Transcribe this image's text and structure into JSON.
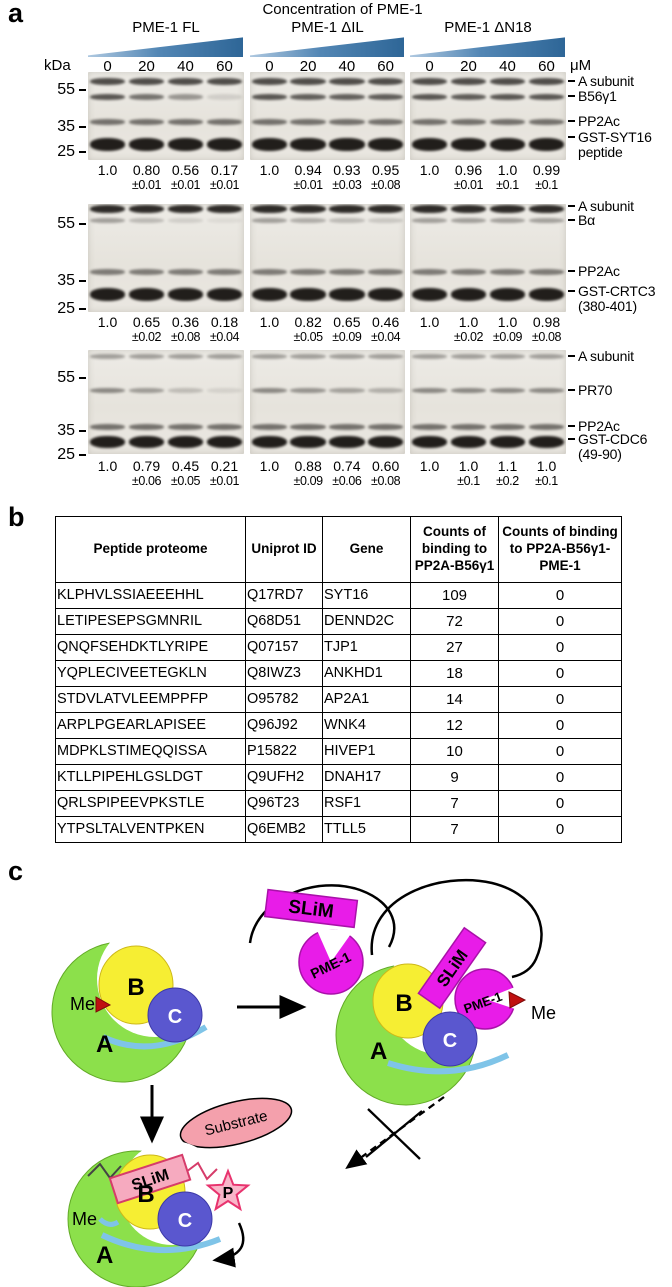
{
  "panels": {
    "a": "a",
    "b": "b",
    "c": "c"
  },
  "panel_a": {
    "title": "Concentration of PME-1",
    "groups": [
      "PME-1 FL",
      "PME-1 ΔIL",
      "PME-1 ΔN18"
    ],
    "kda_label": "kDa",
    "um_label": "μM",
    "concentrations": [
      "0",
      "20",
      "40",
      "60"
    ],
    "blots": [
      {
        "markers": [
          "55",
          "35",
          "25"
        ],
        "band_labels": [
          "A subunit",
          "B56γ1",
          "PP2Ac",
          "GST-SYT16 peptide"
        ],
        "quant": [
          {
            "values": [
              "1.0",
              "0.80",
              "0.56",
              "0.17"
            ],
            "errors": [
              "",
              "±0.01",
              "±0.01",
              "±0.01"
            ]
          },
          {
            "values": [
              "1.0",
              "0.94",
              "0.93",
              "0.95"
            ],
            "errors": [
              "",
              "±0.01",
              "±0.03",
              "±0.08"
            ]
          },
          {
            "values": [
              "1.0",
              "0.96",
              "1.0",
              "0.99"
            ],
            "errors": [
              "",
              "±0.01",
              "±0.1",
              "±0.1"
            ]
          }
        ]
      },
      {
        "markers": [
          "55",
          "35",
          "25"
        ],
        "band_labels": [
          "A subunit",
          "Bα",
          "PP2Ac",
          "GST-CRTC3 (380-401)"
        ],
        "quant": [
          {
            "values": [
              "1.0",
              "0.65",
              "0.36",
              "0.18"
            ],
            "errors": [
              "",
              "±0.02",
              "±0.08",
              "±0.04"
            ]
          },
          {
            "values": [
              "1.0",
              "0.82",
              "0.65",
              "0.46"
            ],
            "errors": [
              "",
              "±0.05",
              "±0.09",
              "±0.04"
            ]
          },
          {
            "values": [
              "1.0",
              "1.0",
              "1.0",
              "0.98"
            ],
            "errors": [
              "",
              "±0.02",
              "±0.09",
              "±0.08"
            ]
          }
        ]
      },
      {
        "markers": [
          "55",
          "35",
          "25"
        ],
        "band_labels": [
          "A subunit",
          "PR70",
          "PP2Ac",
          "GST-CDC6 (49-90)"
        ],
        "quant": [
          {
            "values": [
              "1.0",
              "0.79",
              "0.45",
              "0.21"
            ],
            "errors": [
              "",
              "±0.06",
              "±0.05",
              "±0.01"
            ]
          },
          {
            "values": [
              "1.0",
              "0.88",
              "0.74",
              "0.60"
            ],
            "errors": [
              "",
              "±0.09",
              "±0.06",
              "±0.08"
            ]
          },
          {
            "values": [
              "1.0",
              "1.0",
              "1.1",
              "1.0"
            ],
            "errors": [
              "",
              "±0.1",
              "±0.2",
              "±0.1"
            ]
          }
        ]
      }
    ]
  },
  "panel_b": {
    "headers": [
      "Peptide proteome",
      "Uniprot ID",
      "Gene",
      "Counts of binding to PP2A-B56γ1",
      "Counts of binding to PP2A-B56γ1-PME-1"
    ],
    "rows": [
      [
        "KLPHVLSSIAEEEHHL",
        "Q17RD7",
        "SYT16",
        "109",
        "0"
      ],
      [
        "LETIPESEPSGMNRIL",
        "Q68D51",
        "DENND2C",
        "72",
        "0"
      ],
      [
        "QNQFSEHDKTLYRIPE",
        "Q07157",
        "TJP1",
        "27",
        "0"
      ],
      [
        "YQPLECIVEETEGKLN",
        "Q8IWZ3",
        "ANKHD1",
        "18",
        "0"
      ],
      [
        "STDVLATVLEEMPPFP",
        "O95782",
        "AP2A1",
        "14",
        "0"
      ],
      [
        "ARPLPGEARLAPISEE",
        "Q96J92",
        "WNK4",
        "12",
        "0"
      ],
      [
        "MDPKLSTIMEQQISSA",
        "P15822",
        "HIVEP1",
        "10",
        "0"
      ],
      [
        "KTLLPIPEHLGSLDGT",
        "Q9UFH2",
        "DNAH17",
        "9",
        "0"
      ],
      [
        "QRLSPIPEEVPKSTLE",
        "Q96T23",
        "RSF1",
        "7",
        "0"
      ],
      [
        "YTPSLTALVENTPKEN",
        "Q6EMB2",
        "TTLL5",
        "7",
        "0"
      ]
    ]
  },
  "panel_c": {
    "slim_label": "SLiM",
    "pme1_label": "PME-1",
    "a_label": "A",
    "b_label": "B",
    "c_label": "C",
    "me_label": "Me",
    "substrate_label": "Substrate",
    "phospho_label": "P",
    "colors": {
      "a_subunit": "#8ce04b",
      "b_subunit": "#f6ee33",
      "c_subunit": "#5a57cf",
      "slim": "#e81ce8",
      "substrate": "#f4a0ac",
      "phosphate": "#f9b6c9",
      "methyl": "#c01010",
      "linker": "#7fc4e8",
      "triangle": "#2e6697"
    }
  }
}
